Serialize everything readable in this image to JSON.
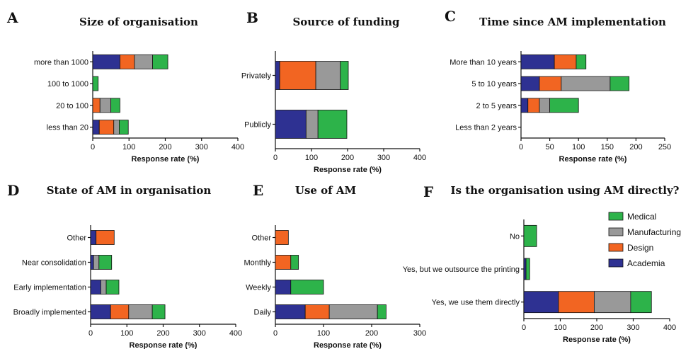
{
  "legend": {
    "items": [
      {
        "name": "Medical",
        "color": "#2db34a"
      },
      {
        "name": "Manufacturing",
        "color": "#999999"
      },
      {
        "name": "Design",
        "color": "#f26522"
      },
      {
        "name": "Academia",
        "color": "#2e3192"
      }
    ]
  },
  "chart_data": [
    {
      "id": "A",
      "letter": "A",
      "type": "bar",
      "orientation": "horizontal",
      "stacked": true,
      "title": "Size of organisation",
      "xlabel": "Response rate (%)",
      "xlim": [
        0,
        400
      ],
      "xticks": [
        0,
        100,
        200,
        300,
        400
      ],
      "categories": [
        "more than 1000",
        "100 to 1000",
        "20 to 100",
        "less than 20"
      ],
      "series": [
        {
          "name": "Academia",
          "values": [
            75,
            0,
            0,
            18
          ]
        },
        {
          "name": "Design",
          "values": [
            40,
            0,
            20,
            40
          ]
        },
        {
          "name": "Manufacturing",
          "values": [
            50,
            0,
            30,
            15
          ]
        },
        {
          "name": "Medical",
          "values": [
            42,
            15,
            25,
            25
          ]
        }
      ]
    },
    {
      "id": "B",
      "letter": "B",
      "type": "bar",
      "orientation": "horizontal",
      "stacked": true,
      "title": "Source of funding",
      "xlabel": "Response rate (%)",
      "xlim": [
        0,
        400
      ],
      "xticks": [
        0,
        100,
        200,
        300,
        400
      ],
      "categories": [
        "Privately",
        "Publicly"
      ],
      "series": [
        {
          "name": "Academia",
          "values": [
            12,
            85
          ]
        },
        {
          "name": "Design",
          "values": [
            100,
            0
          ]
        },
        {
          "name": "Manufacturing",
          "values": [
            68,
            33
          ]
        },
        {
          "name": "Medical",
          "values": [
            22,
            80
          ]
        }
      ]
    },
    {
      "id": "C",
      "letter": "C",
      "type": "bar",
      "orientation": "horizontal",
      "stacked": true,
      "title": "Time since AM implementation",
      "xlabel": "Response rate (%)",
      "xlim": [
        0,
        250
      ],
      "xticks": [
        0,
        50,
        100,
        150,
        200,
        250
      ],
      "categories": [
        "More than 10 years",
        "5 to 10 years",
        "2 to 5 years",
        "Less than 2 years"
      ],
      "series": [
        {
          "name": "Academia",
          "values": [
            58,
            32,
            12,
            0
          ]
        },
        {
          "name": "Design",
          "values": [
            38,
            38,
            20,
            0
          ]
        },
        {
          "name": "Manufacturing",
          "values": [
            0,
            85,
            18,
            0
          ]
        },
        {
          "name": "Medical",
          "values": [
            17,
            33,
            50,
            0
          ]
        }
      ]
    },
    {
      "id": "D",
      "letter": "D",
      "type": "bar",
      "orientation": "horizontal",
      "stacked": true,
      "title": "State of AM in organisation",
      "xlabel": "Response rate (%)",
      "xlim": [
        0,
        400
      ],
      "xticks": [
        0,
        100,
        200,
        300,
        400
      ],
      "categories": [
        "Other",
        "Near consolidation",
        "Early implementation",
        "Broadly implemented"
      ],
      "series": [
        {
          "name": "Academia",
          "values": [
            15,
            8,
            28,
            55
          ]
        },
        {
          "name": "Design",
          "values": [
            50,
            0,
            0,
            50
          ]
        },
        {
          "name": "Manufacturing",
          "values": [
            0,
            15,
            15,
            65
          ]
        },
        {
          "name": "Medical",
          "values": [
            0,
            35,
            35,
            35
          ]
        }
      ]
    },
    {
      "id": "E",
      "letter": "E",
      "type": "bar",
      "orientation": "horizontal",
      "stacked": true,
      "title": "Use of AM",
      "xlabel": "Response rate (%)",
      "xlim": [
        0,
        300
      ],
      "xticks": [
        0,
        100,
        200,
        300
      ],
      "categories": [
        "Other",
        "Monthly",
        "Weekly",
        "Daily"
      ],
      "series": [
        {
          "name": "Academia",
          "values": [
            0,
            0,
            32,
            62
          ]
        },
        {
          "name": "Design",
          "values": [
            27,
            32,
            0,
            50
          ]
        },
        {
          "name": "Manufacturing",
          "values": [
            0,
            0,
            0,
            100
          ]
        },
        {
          "name": "Medical",
          "values": [
            0,
            16,
            68,
            18
          ]
        }
      ]
    },
    {
      "id": "F",
      "letter": "F",
      "type": "bar",
      "orientation": "horizontal",
      "stacked": true,
      "title": "Is the organisation using AM directly?",
      "xlabel": "Response rate (%)",
      "xlim": [
        0,
        400
      ],
      "xticks": [
        0,
        100,
        200,
        300,
        400
      ],
      "categories": [
        "No",
        "Yes, but we outsource the printing",
        "Yes, we use them directly"
      ],
      "series": [
        {
          "name": "Academia",
          "values": [
            0,
            6,
            95
          ]
        },
        {
          "name": "Design",
          "values": [
            0,
            0,
            98
          ]
        },
        {
          "name": "Manufacturing",
          "values": [
            0,
            0,
            100
          ]
        },
        {
          "name": "Medical",
          "values": [
            35,
            10,
            57
          ]
        }
      ]
    }
  ]
}
